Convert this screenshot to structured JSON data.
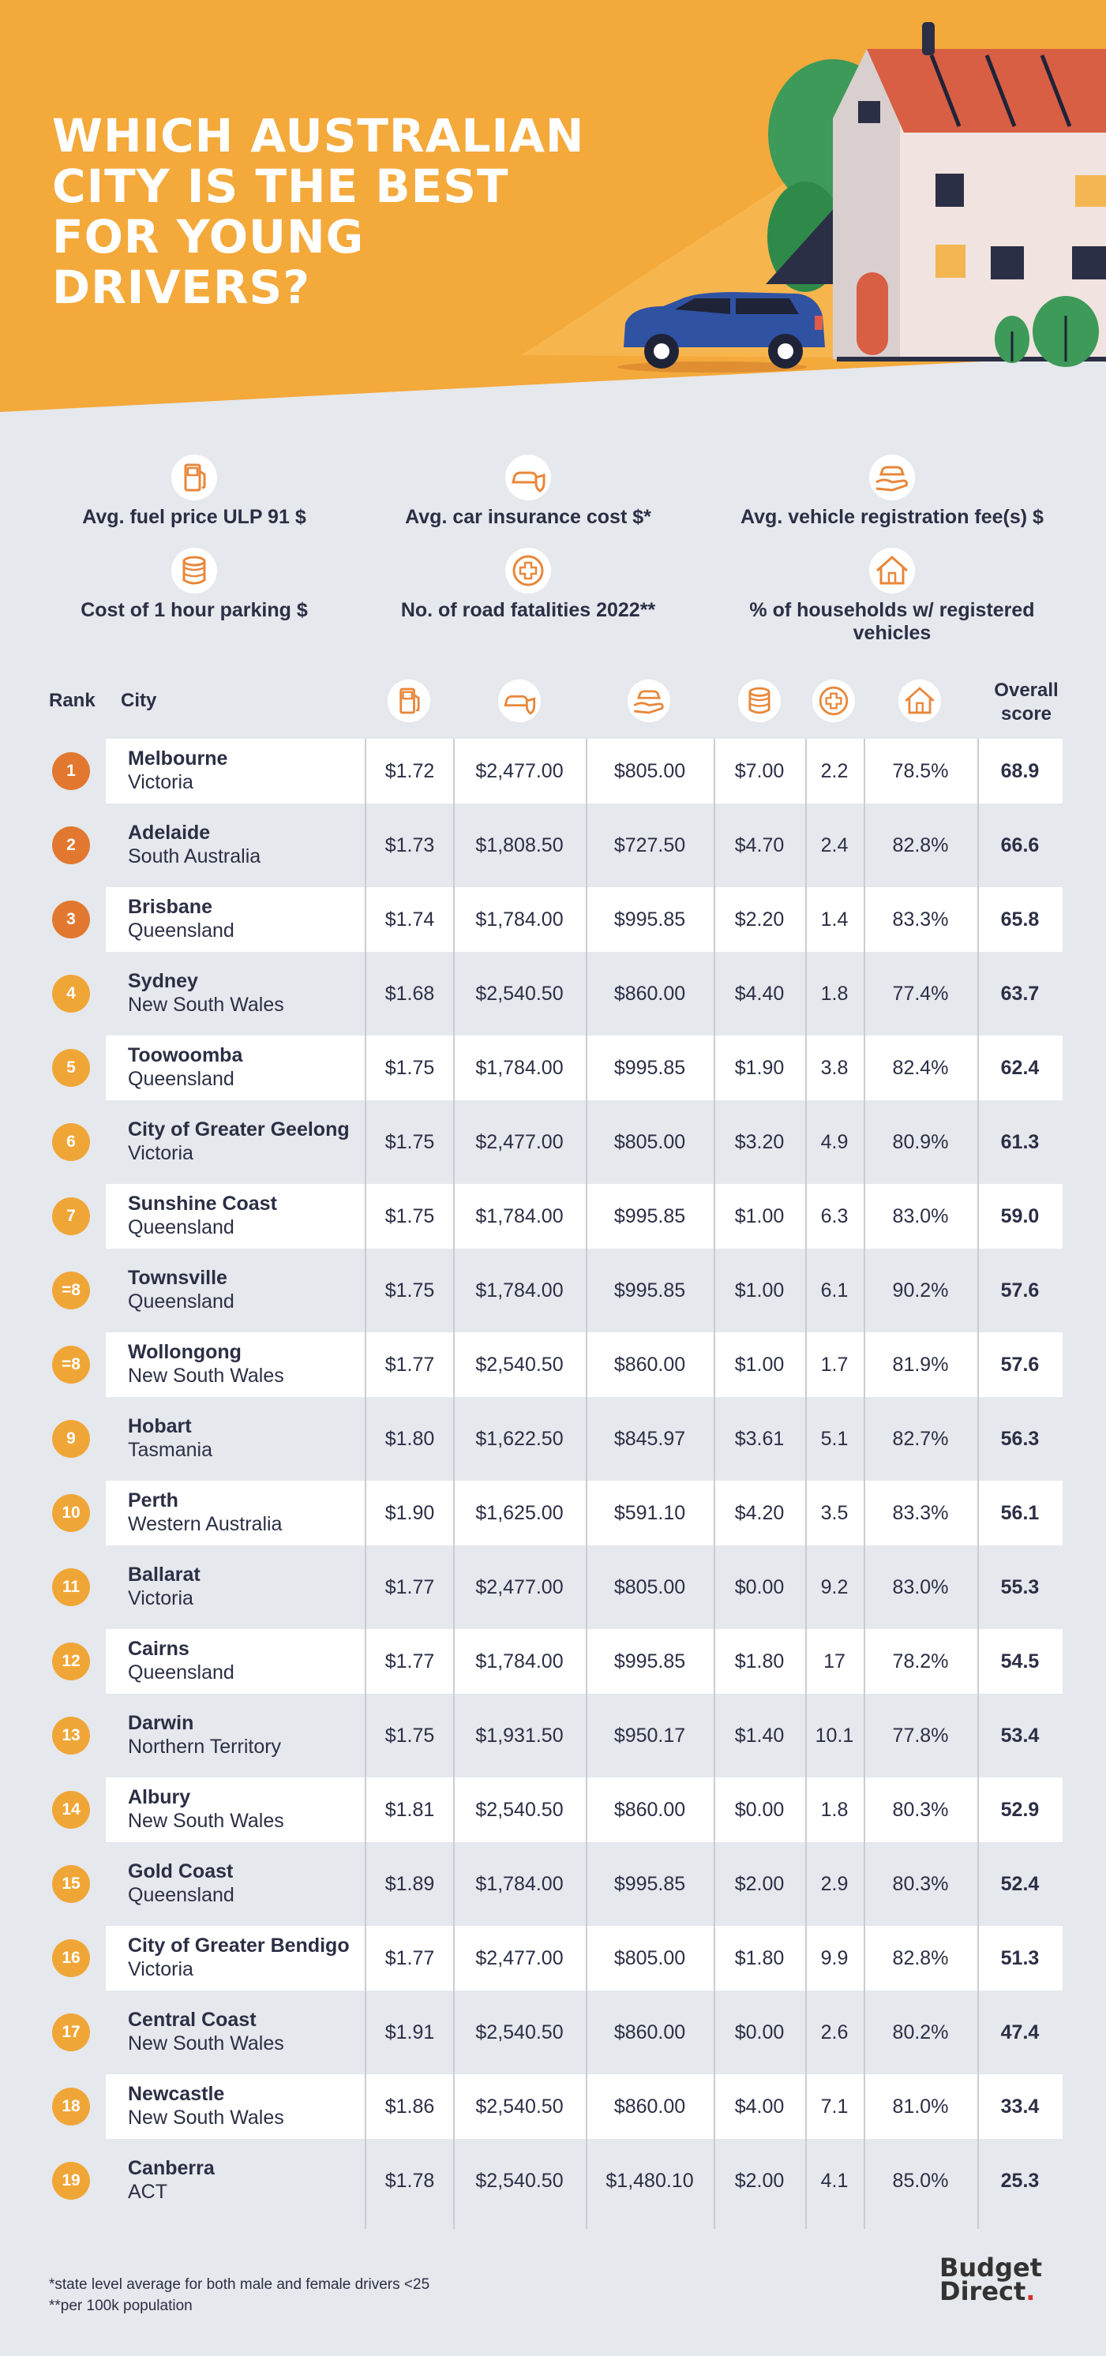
{
  "title": "WHICH AUSTRALIAN CITY IS THE BEST FOR YOUNG DRIVERS?",
  "colors": {
    "hero_orange": "#f4a93b",
    "accent_orange": "#e8873a",
    "badge_dark": "#e2782f",
    "badge_light": "#f0a637",
    "text_dark": "#2b2f45",
    "background": "#e5e8ec"
  },
  "legend": [
    {
      "icon": "fuel-pump-icon",
      "label": "Avg. fuel price ULP 91 $"
    },
    {
      "icon": "car-shield-icon",
      "label": "Avg. car insurance cost $*"
    },
    {
      "icon": "car-hand-icon",
      "label": "Avg. vehicle registration fee(s) $"
    },
    {
      "icon": "coin-stack-icon",
      "label": "Cost of 1 hour parking $"
    },
    {
      "icon": "medical-cross-icon",
      "label": "No. of road fatalities 2022**"
    },
    {
      "icon": "house-icon",
      "label": "% of households w/ registered vehicles"
    }
  ],
  "table": {
    "rank_header": "Rank",
    "city_header": "City",
    "score_header_line1": "Overall",
    "score_header_line2": "score",
    "rows": [
      {
        "rank": "1",
        "city": "Melbourne",
        "state": "Victoria",
        "fuel": "$1.72",
        "insurance": "$2,477.00",
        "registration": "$805.00",
        "parking": "$7.00",
        "fatalities": "2.2",
        "households": "78.5%",
        "score": "68.9"
      },
      {
        "rank": "2",
        "city": "Adelaide",
        "state": "South Australia",
        "fuel": "$1.73",
        "insurance": "$1,808.50",
        "registration": "$727.50",
        "parking": "$4.70",
        "fatalities": "2.4",
        "households": "82.8%",
        "score": "66.6"
      },
      {
        "rank": "3",
        "city": "Brisbane",
        "state": "Queensland",
        "fuel": "$1.74",
        "insurance": "$1,784.00",
        "registration": "$995.85",
        "parking": "$2.20",
        "fatalities": "1.4",
        "households": "83.3%",
        "score": "65.8"
      },
      {
        "rank": "4",
        "city": "Sydney",
        "state": "New South Wales",
        "fuel": "$1.68",
        "insurance": "$2,540.50",
        "registration": "$860.00",
        "parking": "$4.40",
        "fatalities": "1.8",
        "households": "77.4%",
        "score": "63.7"
      },
      {
        "rank": "5",
        "city": "Toowoomba",
        "state": "Queensland",
        "fuel": "$1.75",
        "insurance": "$1,784.00",
        "registration": "$995.85",
        "parking": "$1.90",
        "fatalities": "3.8",
        "households": "82.4%",
        "score": "62.4"
      },
      {
        "rank": "6",
        "city": "City of Greater Geelong",
        "state": "Victoria",
        "fuel": "$1.75",
        "insurance": "$2,477.00",
        "registration": "$805.00",
        "parking": "$3.20",
        "fatalities": "4.9",
        "households": "80.9%",
        "score": "61.3"
      },
      {
        "rank": "7",
        "city": "Sunshine Coast",
        "state": "Queensland",
        "fuel": "$1.75",
        "insurance": "$1,784.00",
        "registration": "$995.85",
        "parking": "$1.00",
        "fatalities": "6.3",
        "households": "83.0%",
        "score": "59.0"
      },
      {
        "rank": "=8",
        "city": "Townsville",
        "state": "Queensland",
        "fuel": "$1.75",
        "insurance": "$1,784.00",
        "registration": "$995.85",
        "parking": "$1.00",
        "fatalities": "6.1",
        "households": "90.2%",
        "score": "57.6"
      },
      {
        "rank": "=8",
        "city": "Wollongong",
        "state": "New South Wales",
        "fuel": "$1.77",
        "insurance": "$2,540.50",
        "registration": "$860.00",
        "parking": "$1.00",
        "fatalities": "1.7",
        "households": "81.9%",
        "score": "57.6"
      },
      {
        "rank": "9",
        "city": "Hobart",
        "state": "Tasmania",
        "fuel": "$1.80",
        "insurance": "$1,622.50",
        "registration": "$845.97",
        "parking": "$3.61",
        "fatalities": "5.1",
        "households": "82.7%",
        "score": "56.3"
      },
      {
        "rank": "10",
        "city": "Perth",
        "state": "Western Australia",
        "fuel": "$1.90",
        "insurance": "$1,625.00",
        "registration": "$591.10",
        "parking": "$4.20",
        "fatalities": "3.5",
        "households": "83.3%",
        "score": "56.1"
      },
      {
        "rank": "11",
        "city": "Ballarat",
        "state": "Victoria",
        "fuel": "$1.77",
        "insurance": "$2,477.00",
        "registration": "$805.00",
        "parking": "$0.00",
        "fatalities": "9.2",
        "households": "83.0%",
        "score": "55.3"
      },
      {
        "rank": "12",
        "city": "Cairns",
        "state": "Queensland",
        "fuel": "$1.77",
        "insurance": "$1,784.00",
        "registration": "$995.85",
        "parking": "$1.80",
        "fatalities": "17",
        "households": "78.2%",
        "score": "54.5"
      },
      {
        "rank": "13",
        "city": "Darwin",
        "state": "Northern Territory",
        "fuel": "$1.75",
        "insurance": "$1,931.50",
        "registration": "$950.17",
        "parking": "$1.40",
        "fatalities": "10.1",
        "households": "77.8%",
        "score": "53.4"
      },
      {
        "rank": "14",
        "city": "Albury",
        "state": "New South Wales",
        "fuel": "$1.81",
        "insurance": "$2,540.50",
        "registration": "$860.00",
        "parking": "$0.00",
        "fatalities": "1.8",
        "households": "80.3%",
        "score": "52.9"
      },
      {
        "rank": "15",
        "city": "Gold Coast",
        "state": "Queensland",
        "fuel": "$1.89",
        "insurance": "$1,784.00",
        "registration": "$995.85",
        "parking": "$2.00",
        "fatalities": "2.9",
        "households": "80.3%",
        "score": "52.4"
      },
      {
        "rank": "16",
        "city": "City of Greater Bendigo",
        "state": "Victoria",
        "fuel": "$1.77",
        "insurance": "$2,477.00",
        "registration": "$805.00",
        "parking": "$1.80",
        "fatalities": "9.9",
        "households": "82.8%",
        "score": "51.3"
      },
      {
        "rank": "17",
        "city": "Central Coast",
        "state": "New South Wales",
        "fuel": "$1.91",
        "insurance": "$2,540.50",
        "registration": "$860.00",
        "parking": "$0.00",
        "fatalities": "2.6",
        "households": "80.2%",
        "score": "47.4"
      },
      {
        "rank": "18",
        "city": "Newcastle",
        "state": "New South Wales",
        "fuel": "$1.86",
        "insurance": "$2,540.50",
        "registration": "$860.00",
        "parking": "$4.00",
        "fatalities": "7.1",
        "households": "81.0%",
        "score": "33.4"
      },
      {
        "rank": "19",
        "city": "Canberra",
        "state": "ACT",
        "fuel": "$1.78",
        "insurance": "$2,540.50",
        "registration": "$1,480.10",
        "parking": "$2.00",
        "fatalities": "4.1",
        "households": "85.0%",
        "score": "25.3"
      }
    ]
  },
  "footnotes": [
    "*state level average for both male and female drivers <25",
    "**per 100k population"
  ],
  "brand": {
    "line1": "Budget",
    "line2": "Direct"
  }
}
